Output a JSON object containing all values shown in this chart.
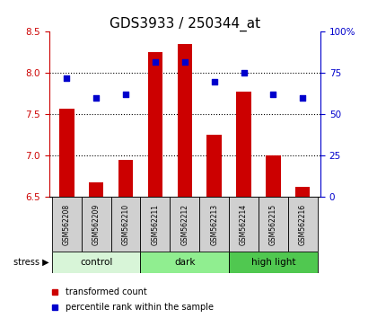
{
  "title": "GDS3933 / 250344_at",
  "samples": [
    "GSM562208",
    "GSM562209",
    "GSM562210",
    "GSM562211",
    "GSM562212",
    "GSM562213",
    "GSM562214",
    "GSM562215",
    "GSM562216"
  ],
  "red_bars": [
    7.57,
    6.68,
    6.95,
    8.25,
    8.35,
    7.25,
    7.78,
    7.0,
    6.62
  ],
  "blue_dots": [
    72,
    60,
    62,
    82,
    82,
    70,
    75,
    62,
    60
  ],
  "bar_bottom": 6.5,
  "ylim": [
    6.5,
    8.5
  ],
  "y_ticks_left": [
    6.5,
    7.0,
    7.5,
    8.0,
    8.5
  ],
  "y_ticks_right": [
    0,
    25,
    50,
    75,
    100
  ],
  "y_right_labels": [
    "0",
    "25",
    "50",
    "75",
    "100%"
  ],
  "groups": [
    {
      "label": "control",
      "start": 0,
      "end": 3,
      "color": "#d8f5d8"
    },
    {
      "label": "dark",
      "start": 3,
      "end": 6,
      "color": "#90ee90"
    },
    {
      "label": "high light",
      "start": 6,
      "end": 9,
      "color": "#50c850"
    }
  ],
  "bar_color": "#cc0000",
  "dot_color": "#0000cc",
  "bar_width": 0.5,
  "stress_label": "stress",
  "legend_bar_label": "transformed count",
  "legend_dot_label": "percentile rank within the sample",
  "title_fontsize": 11,
  "tick_fontsize": 7.5,
  "label_fontsize": 7,
  "axis_color_left": "#cc0000",
  "axis_color_right": "#0000cc",
  "grid_yticks": [
    7.0,
    7.5,
    8.0
  ]
}
